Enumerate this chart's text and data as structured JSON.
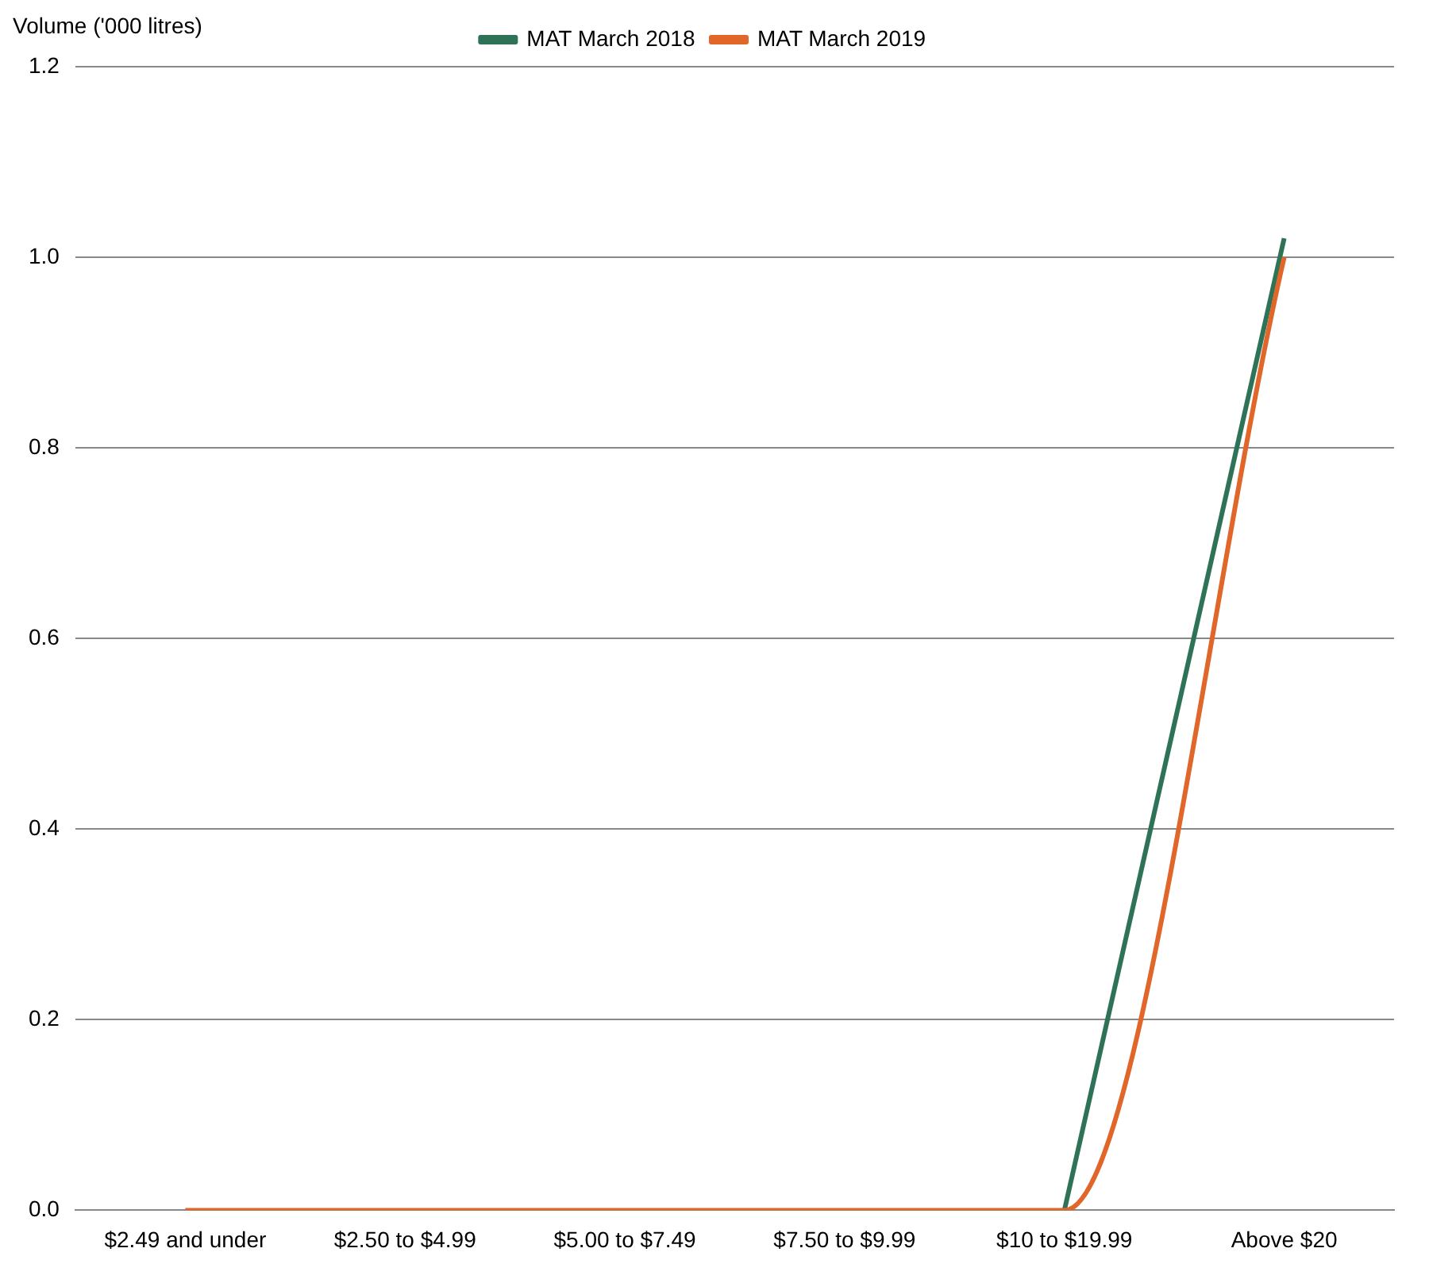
{
  "chart_data": {
    "type": "line",
    "ylabel": "Volume ('000 litres)",
    "categories": [
      "$2.49 and under",
      "$2.50 to $4.99",
      "$5.00 to $7.49",
      "$7.50 to $9.99",
      "$10 to $19.99",
      "Above $20"
    ],
    "series": [
      {
        "name": "MAT March 2018",
        "color": "#2e7358",
        "values": [
          null,
          null,
          null,
          null,
          0,
          1.02
        ]
      },
      {
        "name": "MAT March 2019",
        "color": "#e0662a",
        "values": [
          0,
          0,
          0,
          0,
          0,
          1.0
        ]
      }
    ],
    "ylim": [
      0,
      1.2
    ],
    "yticks": [
      {
        "value": 0,
        "label": "0.0"
      },
      {
        "value": 0.2,
        "label": "0.2"
      },
      {
        "value": 0.4,
        "label": "0.4"
      },
      {
        "value": 0.6,
        "label": "0.6"
      },
      {
        "value": 0.8,
        "label": "0.8"
      },
      {
        "value": 1,
        "label": "1.0"
      },
      {
        "value": 1.2,
        "label": "1.2"
      }
    ],
    "grid": "y",
    "legend": "top",
    "marker": "none",
    "line_style": "solid"
  }
}
